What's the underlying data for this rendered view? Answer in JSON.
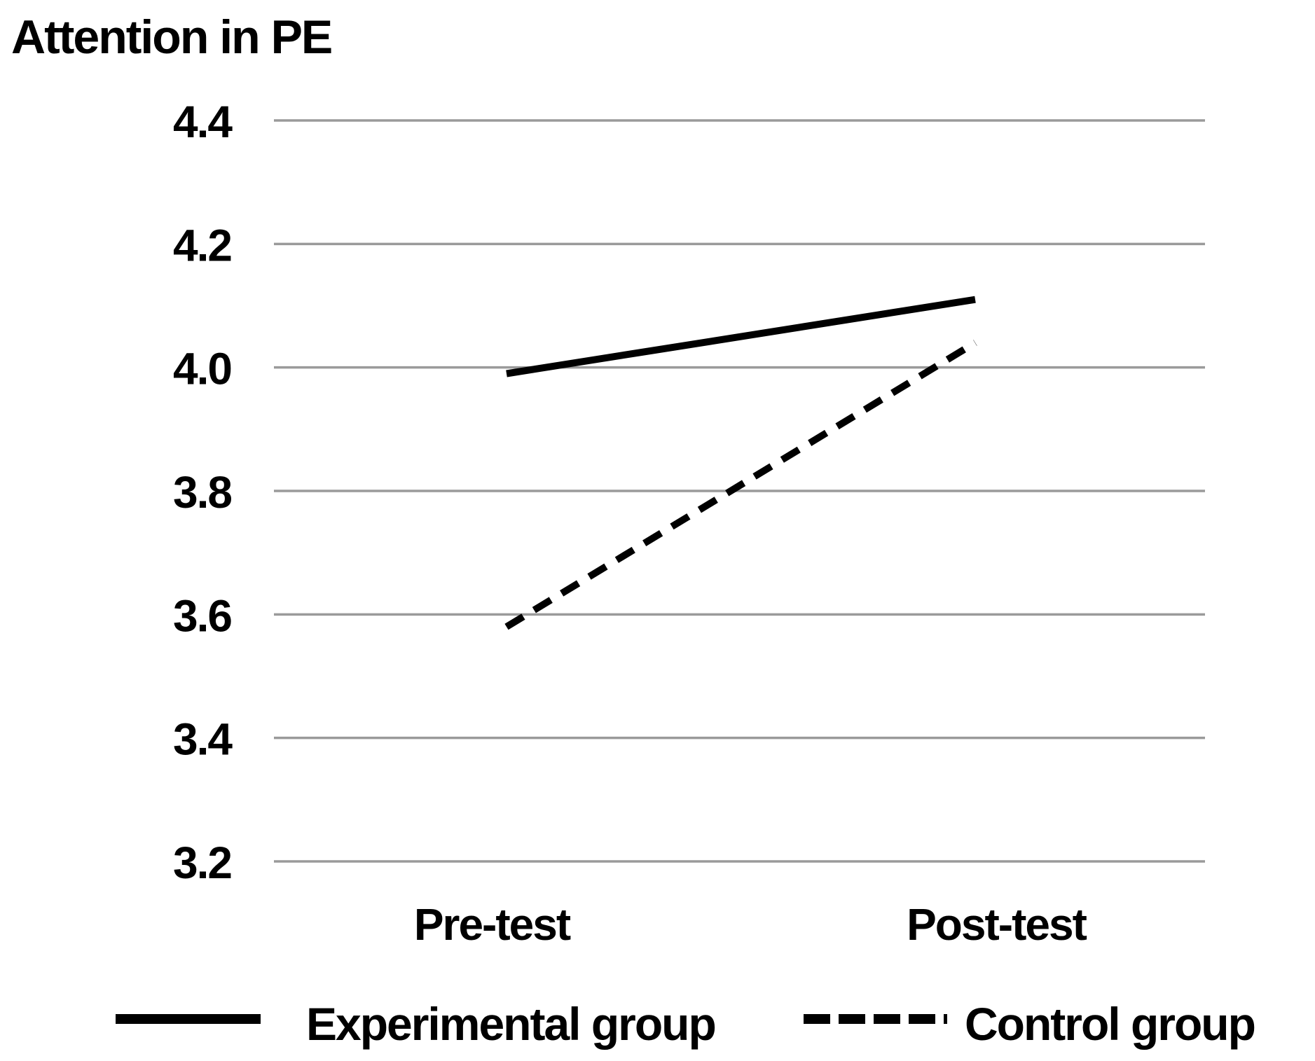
{
  "title": "Attention in PE",
  "chart_data": {
    "type": "line",
    "title": "Attention in PE",
    "categories": [
      "Pre-test",
      "Post-test"
    ],
    "series": [
      {
        "name": "Experimental group",
        "style": "solid",
        "values": [
          3.99,
          4.11
        ]
      },
      {
        "name": "Control group",
        "style": "dashed",
        "values": [
          3.58,
          4.04
        ]
      }
    ],
    "ylim": [
      3.2,
      4.4
    ],
    "ytick_labels": [
      "4.4",
      "4.2",
      "4.0",
      "3.8",
      "3.6",
      "3.4",
      "3.2"
    ],
    "yticks": [
      4.4,
      4.2,
      4.0,
      3.8,
      3.6,
      3.4,
      3.2
    ],
    "xlabel": "",
    "ylabel": "",
    "grid": "horizontal-only",
    "legend_position": "bottom",
    "colors": {
      "line": "#000000",
      "gridline": "#9a9a9a",
      "text": "#000000",
      "background": "#ffffff"
    }
  },
  "legend": {
    "experimental_label": "Experimental group",
    "control_label": "Control group"
  }
}
